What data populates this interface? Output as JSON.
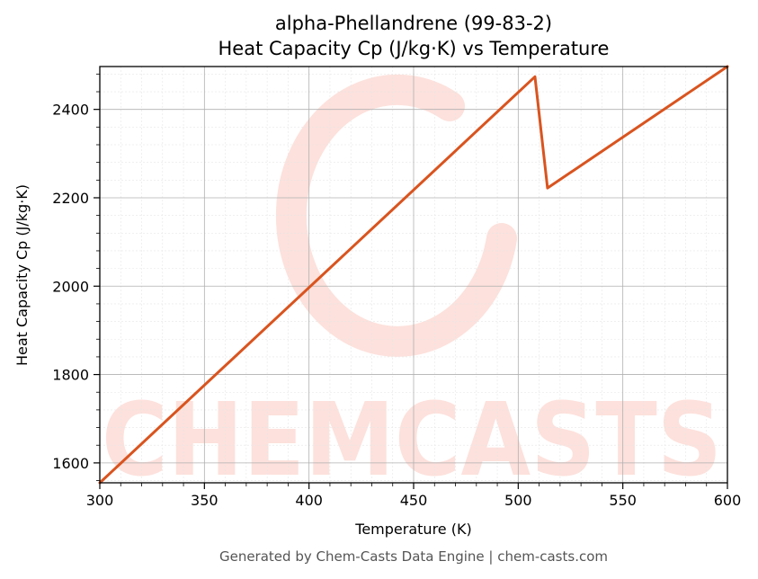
{
  "footer": "Generated by Chem-Casts Data Engine | chem-casts.com",
  "watermark": "CHEMCASTS",
  "colors": {
    "line": "#d9541f",
    "watermark": "#fde1dc",
    "grid_major": "#b0b0b0",
    "grid_minor": "#e6e6e6"
  },
  "chart_data": {
    "type": "line",
    "title": "alpha-Phellandrene (99-83-2)",
    "subtitle": "Heat Capacity Cp (J/kg·K) vs Temperature",
    "xlabel": "Temperature (K)",
    "ylabel": "Heat Capacity Cp (J/kg·K)",
    "xlim": [
      300,
      600
    ],
    "ylim": [
      1555,
      2497
    ],
    "xticks": [
      300,
      350,
      400,
      450,
      500,
      550,
      600
    ],
    "yticks": [
      1600,
      1800,
      2000,
      2200,
      2400
    ],
    "grid": true,
    "series": [
      {
        "x": [
          300,
          508,
          514,
          600
        ],
        "y": [
          1555,
          2474,
          2222,
          2497
        ]
      }
    ]
  }
}
